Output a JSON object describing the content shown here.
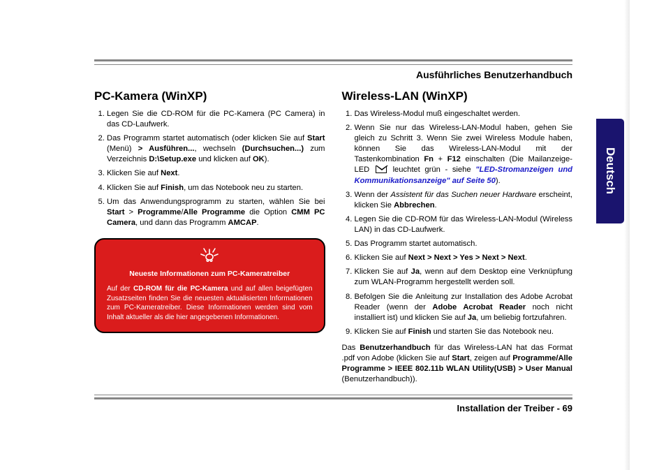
{
  "header": {
    "title": "Ausführliches Benutzerhandbuch"
  },
  "sideTab": {
    "label": "Deutsch",
    "bg": "#1a146e"
  },
  "left": {
    "title": "PC-Kamera (WinXP)",
    "items": [
      "Legen Sie die CD-ROM für die PC-Kamera (PC Camera) in das CD-Laufwerk.",
      "Das Programm startet automatisch (oder klicken Sie auf |Start| (Menü) |> Ausführen...|, wechseln |(Durchsuchen...)| zum Verzeichnis |D:\\Setup.exe| und klicken auf |OK|).",
      "Klicken Sie auf |Next|.",
      "Klicken Sie auf |Finish|, um das Notebook neu zu starten.",
      "Um das Anwendungsprogramm zu starten, wählen Sie bei |Start| > |Programme|/|Alle Programme| die Option |CMM PC Camera|, und dann das Programm |AMCAP|."
    ],
    "callout": {
      "title": "Neueste Informationen zum PC-Kameratreiber",
      "body": "Auf der |CD-ROM für die PC-Kamera| und auf allen beigefügten Zusatzseiten finden Sie die neuesten aktualisierten Informationen zum PC-Kameratreiber. Diese Informationen werden sind vom Inhalt aktueller als die hier angegebenen Informationen."
    }
  },
  "right": {
    "title": "Wireless-LAN (WinXP)",
    "items": [
      "Das Wireless-Modul muß eingeschaltet werden.",
      "Wenn Sie nur das Wireless-LAN-Modul haben, gehen Sie gleich zu Schritt 3. Wenn Sie zwei Wireless Module haben, können Sie das Wireless-LAN-Modul mit der Tastenkombination |Fn| + |F12| einschalten (Die Mailanzeige-LED [ENV] leuchtet grün - siehe [LINK]).",
      "Wenn der  [ITAL:Assistent für das Suchen neuer Hardware] erscheint, klicken Sie |Abbrechen|.",
      "Legen Sie die CD-ROM für das Wireless-LAN-Modul (Wireless LAN) in das CD-Laufwerk.",
      "Das Programm startet automatisch.",
      "Klicken Sie auf |Next > Next > Yes > Next > Next|.",
      "Klicken Sie auf |Ja|, wenn auf dem Desktop eine Verknüpfung zum WLAN-Programm hergestellt werden soll.",
      "Befolgen Sie die Anleitung zur Installation des Adobe Acrobat Reader (wenn der |Adobe Acrobat Reader| noch nicht installiert ist) und klicken Sie auf |Ja|, um beliebig fortzufahren.",
      "Klicken Sie auf |Finish| und starten Sie das Notebook neu."
    ],
    "linkText": "\"LED-Stromanzeigen und Kommunikationsanzeige\" auf Seite 50",
    "closing": "Das |Benutzerhandbuch| für das Wireless-LAN hat das Format .pdf von Adobe (klicken Sie auf |Start|, zeigen auf |Programme/Alle Programme > IEEE 802.11b WLAN Utility(USB) > User Manual| (Benutzerhandbuch))."
  },
  "footer": {
    "section": "Installation der Treiber -",
    "page": "69"
  },
  "colors": {
    "rule": "#868686",
    "calloutBg": "#da1c1c",
    "link": "#1a1ac8"
  }
}
